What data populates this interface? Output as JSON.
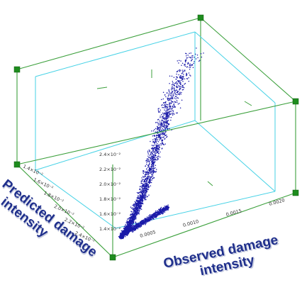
{
  "chart_data": {
    "type": "scatter",
    "title": "",
    "xlabel": "Observed damage intensity",
    "ylabel": "Predicted damage intensity",
    "xlim": [
      0,
      0.002
    ],
    "x_ticks": [
      "0.0005",
      "0.0010",
      "0.0015",
      "0.0020"
    ],
    "z_ticks": [
      "1.4×10⁻²",
      "1.6×10⁻²",
      "1.8×10⁻²",
      "2.0×10⁻²",
      "2.2×10⁻²",
      "2.4×10⁻²"
    ],
    "y_ticks": [
      "1.4×10⁻²",
      "1.6×10⁻²",
      "1.8×10⁻²",
      "2.0×10⁻²",
      "2.2×10⁻²",
      "2.4×10⁻²"
    ],
    "grid": false,
    "colors": {
      "points": "#1a1aa8",
      "box": "#3ca03c",
      "inner_box": "#46d2e6",
      "corner_markers": "#1e8c1e",
      "axis_title": "#1f2f8c"
    },
    "series": [
      {
        "values": [
          [
            2e-05,
            0.014
          ],
          [
            4e-05,
            0.0141
          ],
          [
            5e-05,
            0.0142
          ],
          [
            8e-05,
            0.0143
          ],
          [
            0.0001,
            0.0145
          ],
          [
            0.00012,
            0.0144
          ],
          [
            0.00015,
            0.0146
          ],
          [
            0.00018,
            0.0148
          ],
          [
            0.0002,
            0.0149
          ],
          [
            0.00022,
            0.0151
          ],
          [
            0.00025,
            0.0152
          ],
          [
            0.00028,
            0.0154
          ],
          [
            0.0003,
            0.0156
          ],
          [
            0.00033,
            0.0158
          ],
          [
            0.00035,
            0.016
          ],
          [
            0.00038,
            0.0162
          ],
          [
            0.0004,
            0.0164
          ],
          [
            0.00042,
            0.0166
          ],
          [
            0.00045,
            0.0168
          ],
          [
            0.00048,
            0.017
          ],
          [
            0.0005,
            0.0172
          ],
          [
            0.00052,
            0.0175
          ],
          [
            0.00055,
            0.0178
          ],
          [
            0.00058,
            0.0181
          ],
          [
            0.0006,
            0.0184
          ],
          [
            0.00062,
            0.0187
          ],
          [
            0.00065,
            0.019
          ],
          [
            0.00068,
            0.0193
          ],
          [
            0.0007,
            0.0196
          ],
          [
            0.00072,
            0.0199
          ],
          [
            0.00075,
            0.0202
          ],
          [
            0.00078,
            0.0205
          ],
          [
            0.0008,
            0.0208
          ],
          [
            0.00082,
            0.0211
          ],
          [
            0.00085,
            0.0214
          ],
          [
            0.00088,
            0.0217
          ],
          [
            0.0009,
            0.022
          ],
          [
            0.00092,
            0.0223
          ],
          [
            0.00095,
            0.0226
          ],
          [
            0.00098,
            0.0229
          ],
          [
            0.001,
            0.0232
          ],
          [
            0.00103,
            0.0235
          ],
          [
            0.00105,
            0.0238
          ],
          [
            0.00108,
            0.0241
          ],
          [
            0.0011,
            0.0244
          ],
          [
            0.00115,
            0.0248
          ],
          [
            0.0012,
            0.0252
          ],
          [
            0.00125,
            0.0256
          ],
          [
            0.0013,
            0.026
          ],
          [
            0.00135,
            0.0264
          ],
          [
            0.0014,
            0.0268
          ],
          [
            0.0015,
            0.0274
          ],
          [
            0.0016,
            0.028
          ],
          [
            0.0017,
            0.0286
          ]
        ]
      }
    ]
  }
}
